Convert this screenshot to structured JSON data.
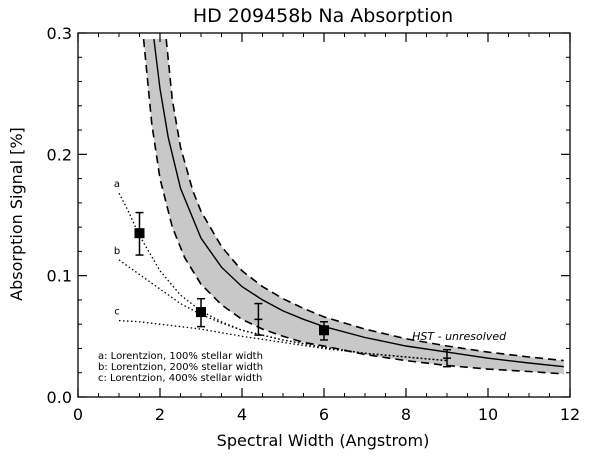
{
  "chart_data": {
    "type": "line",
    "title": "HD 209458b Na Absorption",
    "xlabel": "Spectral Width (Angstrom)",
    "ylabel": "Absorption Signal [%]",
    "xlim": [
      0,
      12
    ],
    "ylim": [
      0,
      0.3
    ],
    "x_ticks": [
      0,
      2,
      4,
      6,
      8,
      10,
      12
    ],
    "x_tick_labels": [
      "0",
      "2",
      "4",
      "6",
      "8",
      "10",
      "12"
    ],
    "y_ticks": [
      0.0,
      0.1,
      0.2,
      0.3
    ],
    "y_tick_labels": [
      "0.0",
      "0.1",
      "0.2",
      "0.3"
    ],
    "model_center": {
      "x": [
        1.85,
        2.0,
        2.2,
        2.5,
        3.0,
        3.5,
        4.0,
        4.5,
        5.0,
        5.5,
        6.0,
        7.0,
        8.0,
        9.0,
        10.0,
        11.0,
        11.85
      ],
      "y": [
        0.295,
        0.254,
        0.214,
        0.172,
        0.131,
        0.107,
        0.091,
        0.08,
        0.071,
        0.064,
        0.058,
        0.049,
        0.042,
        0.037,
        0.032,
        0.028,
        0.025
      ]
    },
    "model_upper": {
      "x": [
        2.15,
        2.3,
        2.5,
        2.8,
        3.0,
        3.5,
        4.0,
        4.5,
        5.0,
        5.5,
        6.0,
        7.0,
        8.0,
        9.0,
        10.0,
        11.0,
        11.85
      ],
      "y": [
        0.295,
        0.245,
        0.206,
        0.17,
        0.153,
        0.124,
        0.104,
        0.091,
        0.081,
        0.073,
        0.066,
        0.056,
        0.048,
        0.042,
        0.037,
        0.033,
        0.03
      ]
    },
    "model_lower": {
      "x": [
        1.6,
        1.8,
        2.0,
        2.3,
        2.6,
        3.0,
        3.5,
        4.0,
        4.5,
        5.0,
        5.5,
        6.0,
        7.0,
        8.0,
        9.0,
        10.0,
        11.0,
        11.85
      ],
      "y": [
        0.295,
        0.225,
        0.18,
        0.14,
        0.115,
        0.093,
        0.076,
        0.064,
        0.056,
        0.05,
        0.045,
        0.042,
        0.035,
        0.03,
        0.026,
        0.023,
        0.021,
        0.019
      ]
    },
    "lorentzian_curves": [
      {
        "label": "a",
        "x": [
          1.0,
          1.2,
          1.5,
          2.0,
          2.5,
          3.0,
          3.5,
          4.0,
          5.0,
          6.0,
          7.0,
          8.0,
          9.0
        ],
        "y": [
          0.168,
          0.155,
          0.133,
          0.104,
          0.084,
          0.071,
          0.062,
          0.055,
          0.047,
          0.041,
          0.036,
          0.033,
          0.03
        ]
      },
      {
        "label": "b",
        "x": [
          1.0,
          1.5,
          2.0,
          2.5,
          3.0,
          3.5,
          4.0,
          5.0,
          6.0,
          7.0,
          8.0,
          9.0
        ],
        "y": [
          0.113,
          0.101,
          0.089,
          0.077,
          0.068,
          0.061,
          0.055,
          0.047,
          0.041,
          0.036,
          0.033,
          0.03
        ]
      },
      {
        "label": "c",
        "x": [
          1.0,
          1.5,
          2.0,
          2.5,
          3.0,
          3.5,
          4.0,
          5.0,
          6.0,
          7.0,
          8.0,
          9.0
        ],
        "y": [
          0.063,
          0.062,
          0.06,
          0.058,
          0.056,
          0.053,
          0.05,
          0.045,
          0.04,
          0.036,
          0.033,
          0.03
        ]
      }
    ],
    "data_points": [
      {
        "x": 1.5,
        "y": 0.135,
        "yerr_low": 0.117,
        "yerr_high": 0.152,
        "filled": true
      },
      {
        "x": 3.0,
        "y": 0.07,
        "yerr_low": 0.058,
        "yerr_high": 0.081,
        "filled": true
      },
      {
        "x": 4.4,
        "y": 0.064,
        "yerr_low": 0.051,
        "yerr_high": 0.077,
        "filled": false
      },
      {
        "x": 6.0,
        "y": 0.055,
        "yerr_low": 0.047,
        "yerr_high": 0.062,
        "filled": true
      },
      {
        "x": 9.0,
        "y": 0.032,
        "yerr_low": 0.025,
        "yerr_high": 0.039,
        "filled": false
      }
    ],
    "annotation": {
      "text": "HST - unresolved",
      "x": 8.15,
      "y": 0.047
    },
    "legend": [
      "a: Lorentzion, 100% stellar width",
      "b: Lorentzion, 200% stellar width",
      "c: Lorentzion, 400% stellar width"
    ],
    "legend_placement": "bottom-left",
    "colors": {
      "band_fill": "#c8c8c8",
      "line": "#000000"
    },
    "grid": false
  }
}
